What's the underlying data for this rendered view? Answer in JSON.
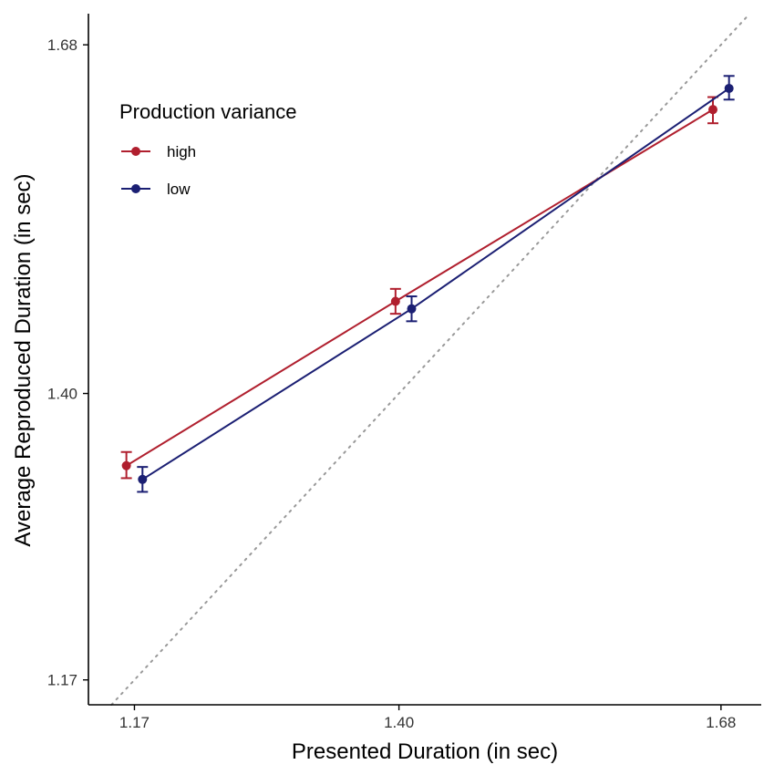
{
  "chart_data": {
    "type": "line",
    "xlabel": "Presented Duration (in sec)",
    "ylabel": "Average Reproduced Duration (in sec)",
    "xlim": [
      1.13,
      1.715
    ],
    "ylim": [
      1.15,
      1.705
    ],
    "xticks": [
      1.17,
      1.4,
      1.68
    ],
    "xtick_labels": [
      "1.17",
      "1.40",
      "1.68"
    ],
    "yticks": [
      1.17,
      1.4,
      1.68
    ],
    "ytick_labels": [
      "1.17",
      "1.40",
      "1.68"
    ],
    "reference_line": {
      "type": "identity",
      "style": "dotted",
      "color": "#999999"
    },
    "legend": {
      "title": "Production variance",
      "placement": "top-left"
    },
    "series": [
      {
        "name": "high",
        "color": "#B01F2E",
        "x": [
          1.163,
          1.397,
          1.673
        ],
        "y": [
          1.342,
          1.474,
          1.628
        ],
        "err_low": [
          1.332,
          1.464,
          1.617
        ],
        "err_high": [
          1.353,
          1.484,
          1.638
        ]
      },
      {
        "name": "low",
        "color": "#1B1F73",
        "x": [
          1.177,
          1.411,
          1.687
        ],
        "y": [
          1.331,
          1.468,
          1.645
        ],
        "err_low": [
          1.321,
          1.458,
          1.636
        ],
        "err_high": [
          1.341,
          1.478,
          1.655
        ]
      }
    ]
  }
}
